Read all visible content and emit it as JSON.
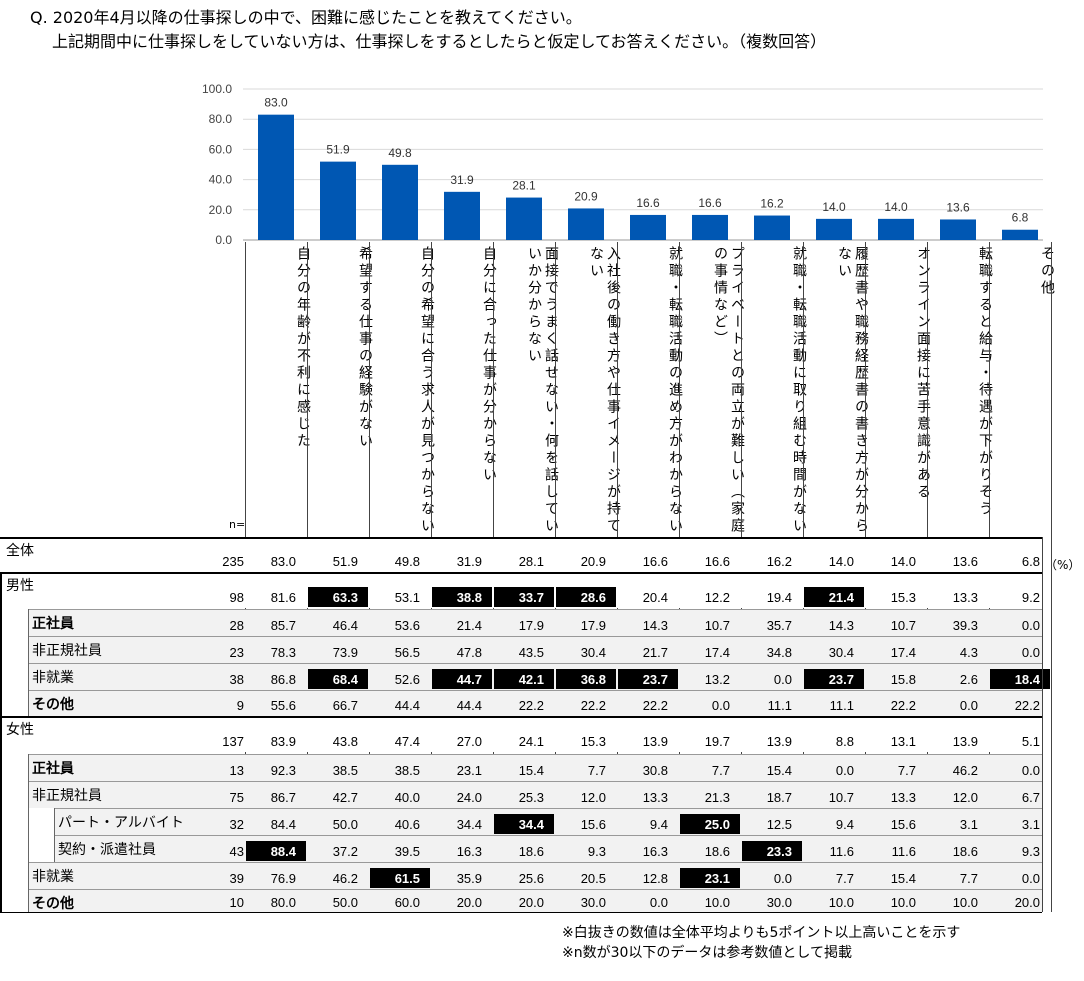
{
  "question": {
    "line1": "Q. 2020年4月以降の仕事探しの中で、困難に感じたことを教えてください。",
    "line2": "上記期間中に仕事探しをしていない方は、仕事探しをするとしたらと仮定してお答えください。（複数回答）"
  },
  "chart_data": {
    "type": "bar",
    "categories": [
      "自分の年齢が不利に感じた",
      "希望する仕事の経験がない",
      "自分の希望に合う求人が見つからない",
      "自分に合った仕事が分からない",
      "面接でうまく話せない・何を話していいか分からない",
      "入社後の働き方や仕事イメージが持てない",
      "就職・転職活動の進め方がわからない",
      "プライベートとの両立が難しい（家庭の事情など）",
      "就職・転職活動に取り組む時間がない",
      "履歴書や職務経歴書の書き方が分からない",
      "オンライン面接に苦手意識がある",
      "転職すると給与・待遇が下がりそう",
      "その他"
    ],
    "values": [
      83.0,
      51.9,
      49.8,
      31.9,
      28.1,
      20.9,
      16.6,
      16.6,
      16.2,
      14.0,
      14.0,
      13.6,
      6.8
    ],
    "ylim": [
      0,
      100
    ],
    "yticks": [
      "0.0",
      "20.0",
      "40.0",
      "60.0",
      "80.0",
      "100.0"
    ],
    "bar_color": "#0057b3",
    "grid": true
  },
  "table": {
    "n_header": "n=",
    "unit": "（%）",
    "rows": [
      {
        "label": "全体",
        "n": "235",
        "values": [
          "83.0",
          "51.9",
          "49.8",
          "31.9",
          "28.1",
          "20.9",
          "16.6",
          "16.6",
          "16.2",
          "14.0",
          "14.0",
          "13.6",
          "6.8"
        ],
        "hl": []
      },
      {
        "label": "男性",
        "n": "98",
        "values": [
          "81.6",
          "63.3",
          "53.1",
          "38.8",
          "33.7",
          "28.6",
          "20.4",
          "12.2",
          "19.4",
          "21.4",
          "15.3",
          "13.3",
          "9.2"
        ],
        "hl": [
          1,
          3,
          4,
          5,
          9
        ]
      },
      {
        "label": "正社員",
        "n": "28",
        "values": [
          "85.7",
          "46.4",
          "53.6",
          "21.4",
          "17.9",
          "17.9",
          "14.3",
          "10.7",
          "35.7",
          "14.3",
          "10.7",
          "39.3",
          "0.0"
        ],
        "hl": []
      },
      {
        "label": "非正規社員",
        "n": "23",
        "values": [
          "78.3",
          "73.9",
          "56.5",
          "47.8",
          "43.5",
          "30.4",
          "21.7",
          "17.4",
          "34.8",
          "30.4",
          "17.4",
          "4.3",
          "0.0"
        ],
        "hl": []
      },
      {
        "label": "非就業",
        "n": "38",
        "values": [
          "86.8",
          "68.4",
          "52.6",
          "44.7",
          "42.1",
          "36.8",
          "23.7",
          "13.2",
          "0.0",
          "23.7",
          "15.8",
          "2.6",
          "18.4"
        ],
        "hl": [
          1,
          3,
          4,
          5,
          6,
          9,
          12
        ]
      },
      {
        "label": "その他",
        "n": "9",
        "values": [
          "55.6",
          "66.7",
          "44.4",
          "44.4",
          "22.2",
          "22.2",
          "22.2",
          "0.0",
          "11.1",
          "11.1",
          "22.2",
          "0.0",
          "22.2"
        ],
        "hl": []
      },
      {
        "label": "女性",
        "n": "137",
        "values": [
          "83.9",
          "43.8",
          "47.4",
          "27.0",
          "24.1",
          "15.3",
          "13.9",
          "19.7",
          "13.9",
          "8.8",
          "13.1",
          "13.9",
          "5.1"
        ],
        "hl": []
      },
      {
        "label": "正社員",
        "n": "13",
        "values": [
          "92.3",
          "38.5",
          "38.5",
          "23.1",
          "15.4",
          "7.7",
          "30.8",
          "7.7",
          "15.4",
          "0.0",
          "7.7",
          "46.2",
          "0.0"
        ],
        "hl": []
      },
      {
        "label": "非正規社員",
        "n": "75",
        "values": [
          "86.7",
          "42.7",
          "40.0",
          "24.0",
          "25.3",
          "12.0",
          "13.3",
          "21.3",
          "18.7",
          "10.7",
          "13.3",
          "12.0",
          "6.7"
        ],
        "hl": []
      },
      {
        "label": "パート・アルバイト",
        "n": "32",
        "values": [
          "84.4",
          "50.0",
          "40.6",
          "34.4",
          "34.4",
          "15.6",
          "9.4",
          "25.0",
          "12.5",
          "9.4",
          "15.6",
          "3.1",
          "3.1"
        ],
        "hl": [
          4,
          7
        ]
      },
      {
        "label": "契約・派遣社員",
        "n": "43",
        "values": [
          "88.4",
          "37.2",
          "39.5",
          "16.3",
          "18.6",
          "9.3",
          "16.3",
          "18.6",
          "23.3",
          "11.6",
          "11.6",
          "18.6",
          "9.3"
        ],
        "hl": [
          0,
          8
        ]
      },
      {
        "label": "非就業",
        "n": "39",
        "values": [
          "76.9",
          "46.2",
          "61.5",
          "35.9",
          "25.6",
          "20.5",
          "12.8",
          "23.1",
          "0.0",
          "7.7",
          "15.4",
          "7.7",
          "0.0"
        ],
        "hl": [
          2,
          7
        ]
      },
      {
        "label": "その他",
        "n": "10",
        "values": [
          "80.0",
          "50.0",
          "60.0",
          "20.0",
          "20.0",
          "30.0",
          "0.0",
          "10.0",
          "30.0",
          "10.0",
          "10.0",
          "10.0",
          "20.0"
        ],
        "hl": []
      }
    ]
  },
  "notes": {
    "line1": "※白抜きの数値は全体平均よりも5ポイント以上高いことを示す",
    "line2": "※n数が30以下のデータは参考数値として掲載"
  }
}
